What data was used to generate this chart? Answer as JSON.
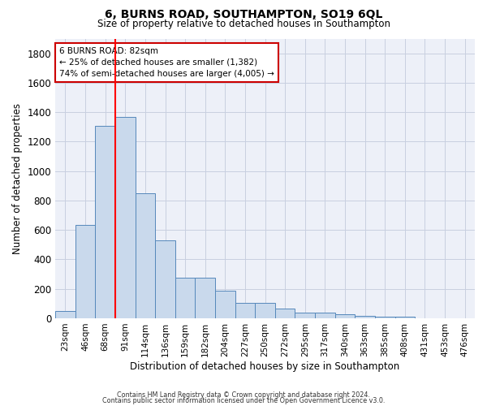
{
  "title": "6, BURNS ROAD, SOUTHAMPTON, SO19 6QL",
  "subtitle": "Size of property relative to detached houses in Southampton",
  "xlabel": "Distribution of detached houses by size in Southampton",
  "ylabel": "Number of detached properties",
  "bar_values": [
    50,
    635,
    1305,
    1370,
    848,
    530,
    275,
    275,
    185,
    105,
    105,
    65,
    38,
    38,
    28,
    18,
    12,
    12,
    0,
    0,
    0
  ],
  "bar_labels": [
    "23sqm",
    "46sqm",
    "68sqm",
    "91sqm",
    "114sqm",
    "136sqm",
    "159sqm",
    "182sqm",
    "204sqm",
    "227sqm",
    "250sqm",
    "272sqm",
    "295sqm",
    "317sqm",
    "340sqm",
    "363sqm",
    "385sqm",
    "408sqm",
    "431sqm",
    "453sqm",
    "476sqm"
  ],
  "bar_color": "#c9d9ec",
  "bar_edge_color": "#5588bb",
  "grid_color": "#c8cfe0",
  "background_color": "#edf0f8",
  "annotation_line1": "6 BURNS ROAD: 82sqm",
  "annotation_line2": "← 25% of detached houses are smaller (1,382)",
  "annotation_line3": "74% of semi-detached houses are larger (4,005) →",
  "annotation_box_color": "#cc0000",
  "vline_x": 2.5,
  "ylim": [
    0,
    1900
  ],
  "yticks": [
    0,
    200,
    400,
    600,
    800,
    1000,
    1200,
    1400,
    1600,
    1800
  ],
  "footer_line1": "Contains HM Land Registry data © Crown copyright and database right 2024.",
  "footer_line2": "Contains public sector information licensed under the Open Government Licence v3.0."
}
